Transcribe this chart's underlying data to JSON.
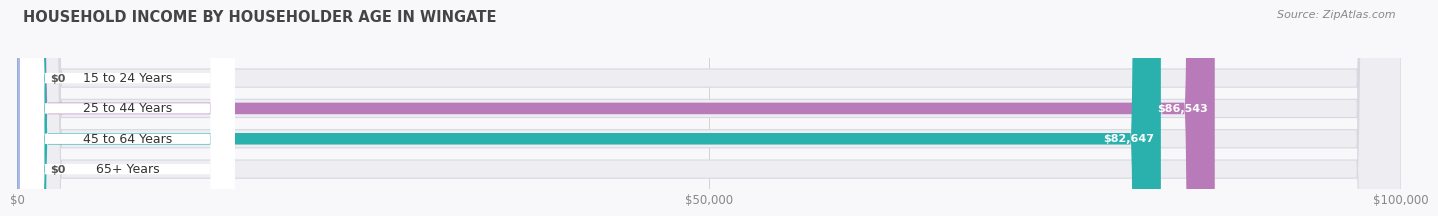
{
  "title": "HOUSEHOLD INCOME BY HOUSEHOLDER AGE IN WINGATE",
  "source": "Source: ZipAtlas.com",
  "categories": [
    "15 to 24 Years",
    "25 to 44 Years",
    "45 to 64 Years",
    "65+ Years"
  ],
  "values": [
    0,
    86543,
    82647,
    0
  ],
  "bar_colors": [
    "#a8b8e0",
    "#b87ab8",
    "#2ab0ad",
    "#b0b8e8"
  ],
  "track_color": "#ededf2",
  "track_edge_color": "#d8d8e0",
  "xlim": [
    0,
    100000
  ],
  "xticks": [
    0,
    50000,
    100000
  ],
  "xtick_labels": [
    "$0",
    "$50,000",
    "$100,000"
  ],
  "value_labels": [
    "$0",
    "$86,543",
    "$82,647",
    "$0"
  ],
  "title_fontsize": 10.5,
  "tick_fontsize": 8.5,
  "label_fontsize": 9,
  "value_fontsize": 8,
  "source_fontsize": 8,
  "background_color": "#f8f8fb",
  "bar_row_bg": "#f8f8fb"
}
